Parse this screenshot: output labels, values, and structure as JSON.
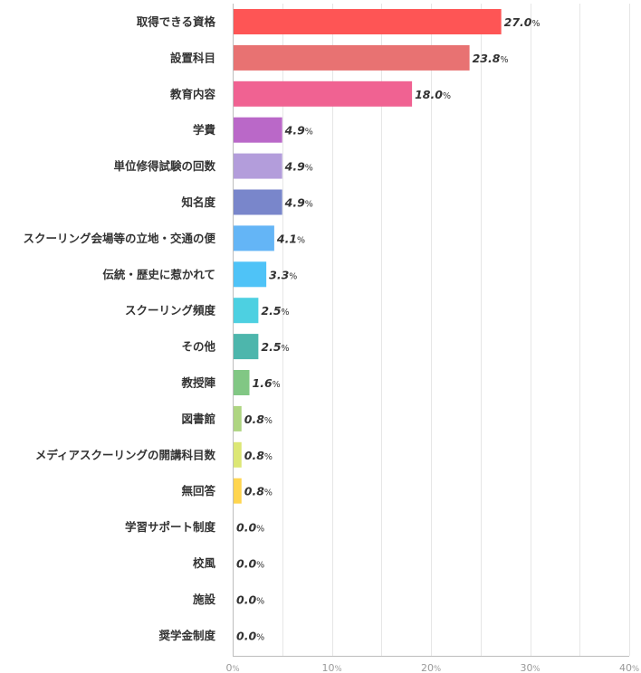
{
  "chart_data": {
    "type": "bar",
    "orientation": "horizontal",
    "categories": [
      "取得できる資格",
      "設置科目",
      "教育内容",
      "学費",
      "単位修得試験の回数",
      "知名度",
      "スクーリング会場等の立地・交通の便",
      "伝統・歴史に惹かれて",
      "スクーリング頻度",
      "その他",
      "教授陣",
      "図書館",
      "メディアスクーリングの開講科目数",
      "無回答",
      "学習サポート制度",
      "校風",
      "施設",
      "奨学金制度"
    ],
    "values": [
      27.0,
      23.8,
      18.0,
      4.9,
      4.9,
      4.9,
      4.1,
      3.3,
      2.5,
      2.5,
      1.6,
      0.8,
      0.8,
      0.8,
      0.0,
      0.0,
      0.0,
      0.0
    ],
    "value_labels": [
      "27.0",
      "23.8",
      "18.0",
      "4.9",
      "4.9",
      "4.9",
      "4.1",
      "3.3",
      "2.5",
      "2.5",
      "1.6",
      "0.8",
      "0.8",
      "0.8",
      "0.0",
      "0.0",
      "0.0",
      "0.0"
    ],
    "value_unit": "%",
    "colors": [
      "#fe5555",
      "#e87272",
      "#f06292",
      "#ba68c8",
      "#b39ddb",
      "#7986cb",
      "#64b5f6",
      "#4fc3f7",
      "#4dd0e1",
      "#4db6ac",
      "#81c784",
      "#aed581",
      "#dce775",
      "#ffd54f",
      "#ffb74d",
      "#ff8a65",
      "#a1887f",
      "#bdbdbd"
    ],
    "xlim": [
      0,
      40
    ],
    "x_ticks": [
      0,
      10,
      20,
      30,
      40
    ],
    "x_tick_labels": [
      "0",
      "10",
      "20",
      "30",
      "40"
    ],
    "x_tick_unit": "%",
    "title": "",
    "xlabel": "",
    "ylabel": "",
    "grid": true,
    "legend": "none"
  }
}
